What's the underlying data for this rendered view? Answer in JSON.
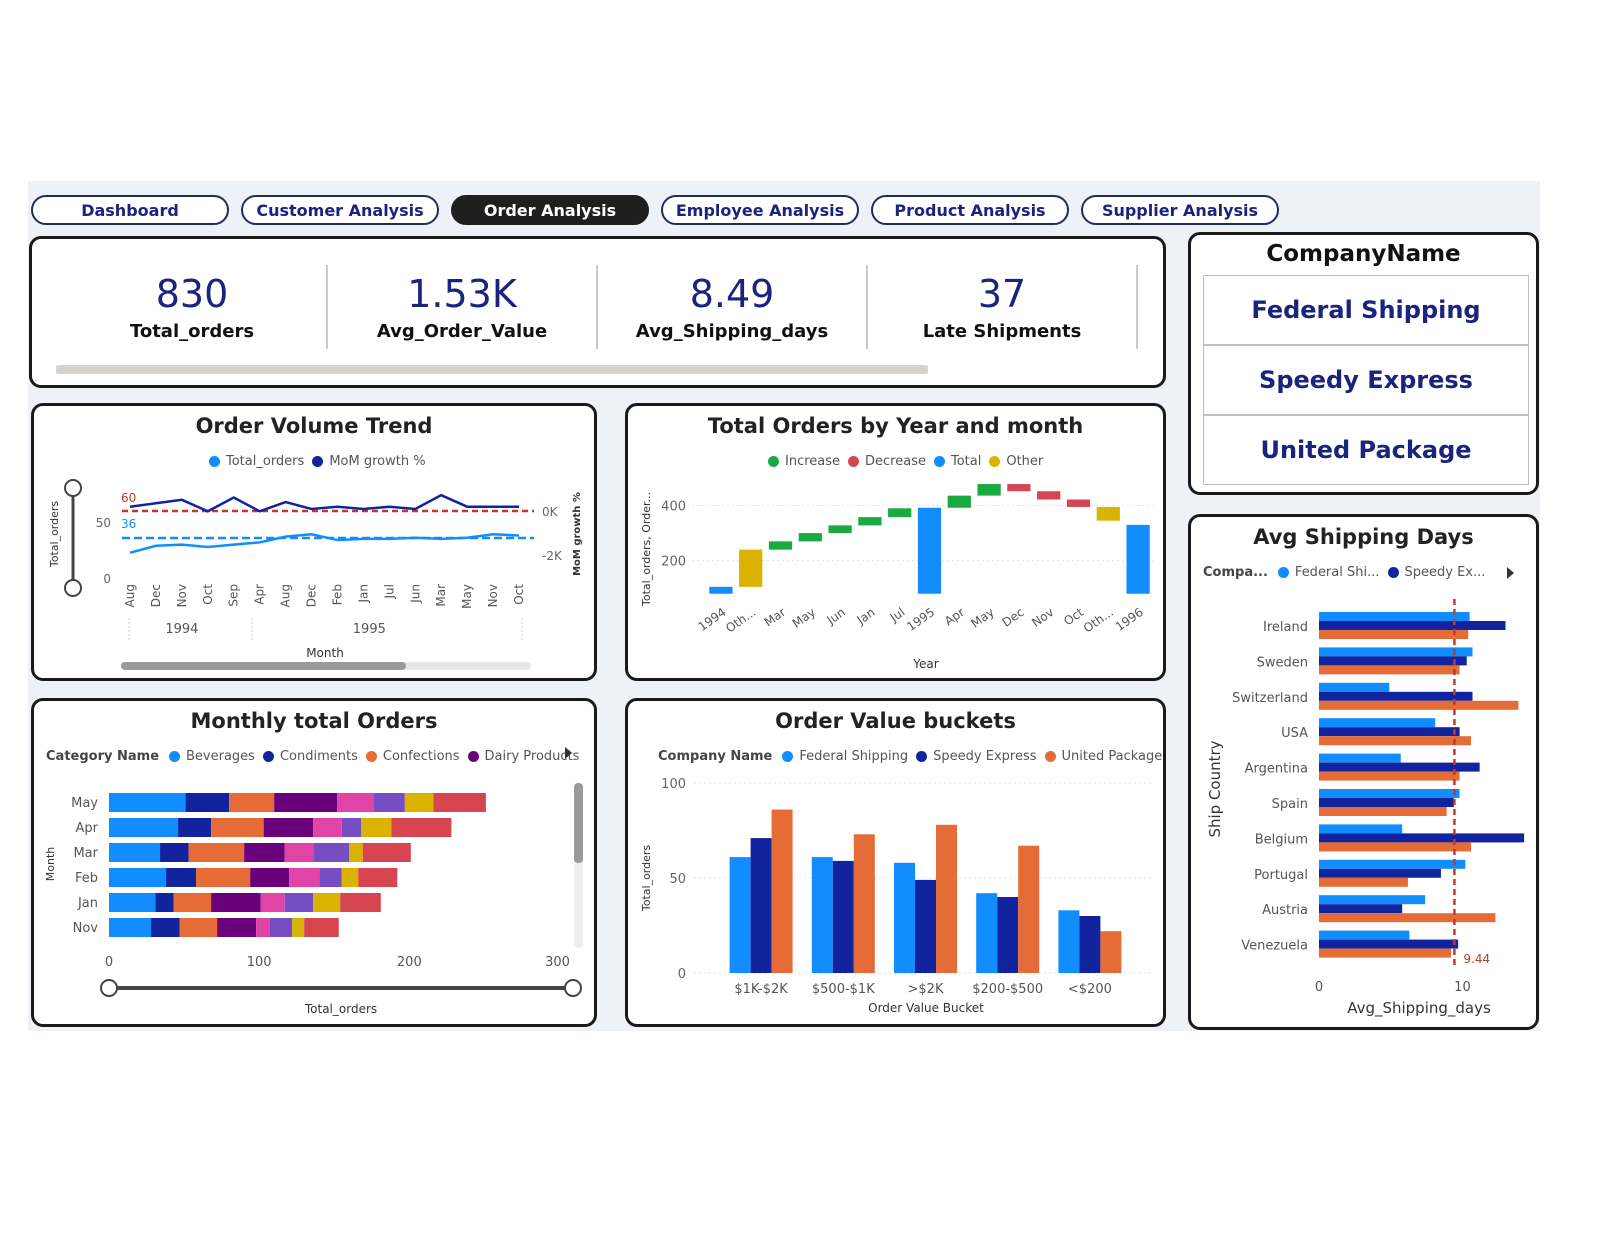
{
  "tabs": [
    {
      "label": "Dashboard",
      "active": false
    },
    {
      "label": "Customer Analysis",
      "active": false
    },
    {
      "label": "Order Analysis",
      "active": true
    },
    {
      "label": "Employee Analysis",
      "active": false
    },
    {
      "label": "Product Analysis",
      "active": false
    },
    {
      "label": "Supplier Analysis",
      "active": false
    }
  ],
  "kpis": [
    {
      "value": "830",
      "label": "Total_orders"
    },
    {
      "value": "1.53K",
      "label": "Avg_Order_Value"
    },
    {
      "value": "8.49",
      "label": "Avg_Shipping_days"
    },
    {
      "value": "37",
      "label": "Late Shipments"
    }
  ],
  "slicer": {
    "title": "CompanyName",
    "items": [
      "Federal Shipping",
      "Speedy Express",
      "United Package"
    ]
  },
  "colors": {
    "light_blue": "#118dff",
    "dark_blue": "#12239e",
    "orange": "#e66c37",
    "purple": "#6b007b",
    "pink": "#e044a7",
    "lavender": "#744ec2",
    "gold": "#d9b300",
    "red": "#d64550",
    "green": "#1aab40",
    "decrease": "#d64554",
    "ref_red": "#c0392b"
  },
  "chart_data": [
    {
      "id": "order-volume-trend",
      "type": "line",
      "title": "Order Volume Trend",
      "legend": [
        "Total_orders",
        "MoM growth %"
      ],
      "xlabel": "Month",
      "ylabel": "Total_orders",
      "y2label": "MoM growth %",
      "x": [
        "Aug",
        "Dec",
        "Nov",
        "Oct",
        "Sep",
        "Apr",
        "Aug",
        "Dec",
        "Feb",
        "Jan",
        "Jul",
        "Jun",
        "Mar",
        "May",
        "Nov",
        "Oct"
      ],
      "year_groups": [
        {
          "label": "1994",
          "from": 0,
          "to": 4
        },
        {
          "label": "1995",
          "from": 5,
          "to": 15
        }
      ],
      "yticks": [
        "50",
        "0"
      ],
      "y2ticks": [
        "0K",
        "-2K"
      ],
      "reference_lines": [
        {
          "label": "60",
          "color": "#c0392b"
        },
        {
          "label": "36",
          "color": "#118dff"
        }
      ],
      "series": [
        {
          "name": "Total_orders",
          "values": [
            22,
            28,
            29,
            27,
            29,
            31,
            36,
            38,
            33,
            34,
            34,
            35,
            34,
            35,
            38,
            37
          ]
        },
        {
          "name": "MoM growth %",
          "values": [
            62,
            65,
            68,
            58,
            70,
            58,
            66,
            60,
            62,
            60,
            62,
            60,
            72,
            62,
            62,
            62
          ]
        }
      ]
    },
    {
      "id": "total-orders-waterfall",
      "type": "bar",
      "title": "Total Orders by Year and month",
      "legend": [
        "Increase",
        "Decrease",
        "Total",
        "Other"
      ],
      "xlabel": "Year",
      "ylabel": "Total_orders, Order...",
      "yticks": [
        200,
        400
      ],
      "ylim": [
        50,
        500
      ],
      "bars": [
        {
          "label": "1994",
          "kind": "Total",
          "start": 80,
          "end": 105
        },
        {
          "label": "Oth...",
          "kind": "Other",
          "start": 105,
          "end": 240
        },
        {
          "label": "Mar",
          "kind": "Increase",
          "start": 240,
          "end": 270
        },
        {
          "label": "May",
          "kind": "Increase",
          "start": 270,
          "end": 300
        },
        {
          "label": "Jun",
          "kind": "Increase",
          "start": 300,
          "end": 328
        },
        {
          "label": "Jan",
          "kind": "Increase",
          "start": 328,
          "end": 358
        },
        {
          "label": "Jul",
          "kind": "Increase",
          "start": 358,
          "end": 390
        },
        {
          "label": "1995",
          "kind": "Total",
          "start": 80,
          "end": 392
        },
        {
          "label": "Apr",
          "kind": "Increase",
          "start": 392,
          "end": 436
        },
        {
          "label": "May",
          "kind": "Increase",
          "start": 436,
          "end": 478
        },
        {
          "label": "Dec",
          "kind": "Decrease",
          "start": 478,
          "end": 452
        },
        {
          "label": "Nov",
          "kind": "Decrease",
          "start": 452,
          "end": 422
        },
        {
          "label": "Oct",
          "kind": "Decrease",
          "start": 422,
          "end": 395
        },
        {
          "label": "Oth...",
          "kind": "Other",
          "start": 395,
          "end": 345
        },
        {
          "label": "1996",
          "kind": "Total",
          "start": 80,
          "end": 330
        }
      ]
    },
    {
      "id": "monthly-total-orders",
      "type": "bar",
      "orientation": "horizontal",
      "stacked": true,
      "title": "Monthly total Orders",
      "legend_title": "Category Name",
      "legend": [
        "Beverages",
        "Condiments",
        "Confections",
        "Dairy Products"
      ],
      "xlabel": "Total_orders",
      "ylabel": "Month",
      "xticks": [
        0,
        100,
        200,
        300
      ],
      "xlim": [
        0,
        305
      ],
      "categories": [
        "May",
        "Apr",
        "Mar",
        "Feb",
        "Jan",
        "Nov"
      ],
      "series": [
        {
          "name": "Beverages",
          "color": "#118dff",
          "values": [
            51,
            46,
            34,
            38,
            31,
            28
          ]
        },
        {
          "name": "Condiments",
          "color": "#12239e",
          "values": [
            29,
            22,
            19,
            20,
            12,
            19
          ]
        },
        {
          "name": "Confections",
          "color": "#e66c37",
          "values": [
            30,
            35,
            37,
            36,
            25,
            25
          ]
        },
        {
          "name": "Dairy Products",
          "color": "#6b007b",
          "values": [
            42,
            33,
            27,
            26,
            33,
            26
          ]
        },
        {
          "values": [
            24,
            19,
            19,
            20,
            16,
            9
          ]
        },
        {
          "values": [
            21,
            13,
            24,
            15,
            19,
            15
          ]
        },
        {
          "values": [
            19,
            20,
            9,
            11,
            18,
            8
          ]
        },
        {
          "values": [
            35,
            40,
            32,
            26,
            27,
            23
          ]
        }
      ]
    },
    {
      "id": "order-value-buckets",
      "type": "bar",
      "title": "Order Value buckets",
      "legend_title": "Company Name",
      "legend": [
        "Federal Shipping",
        "Speedy Express",
        "United Package"
      ],
      "xlabel": "Order Value Bucket",
      "ylabel": "Total_orders",
      "yticks": [
        0,
        50,
        100
      ],
      "ylim": [
        0,
        100
      ],
      "categories": [
        "$1K-$2K",
        "$500-$1K",
        ">$2K",
        "$200-$500",
        "<$200"
      ],
      "series": [
        {
          "name": "Federal Shipping",
          "values": [
            61,
            61,
            58,
            42,
            33
          ]
        },
        {
          "name": "Speedy Express",
          "values": [
            71,
            59,
            49,
            40,
            30
          ]
        },
        {
          "name": "United Package",
          "values": [
            86,
            73,
            78,
            67,
            22
          ]
        }
      ]
    },
    {
      "id": "avg-shipping-days",
      "type": "bar",
      "orientation": "horizontal",
      "title": "Avg Shipping Days",
      "legend_title": "Compa...",
      "legend": [
        "Federal Shi...",
        "Speedy Ex..."
      ],
      "xlabel": "Avg_Shipping_days",
      "ylabel": "Ship Country",
      "xticks": [
        0,
        10
      ],
      "xlim": [
        0,
        14.5
      ],
      "reference_line": {
        "value": 9.44,
        "label": "9.44"
      },
      "categories": [
        "Ireland",
        "Sweden",
        "Switzerland",
        "USA",
        "Argentina",
        "Spain",
        "Belgium",
        "Portugal",
        "Austria",
        "Venezuela"
      ],
      "series": [
        {
          "name": "Federal Shi...",
          "values": [
            10.5,
            10.7,
            4.9,
            8.1,
            5.7,
            9.8,
            5.8,
            10.2,
            7.4,
            6.3
          ]
        },
        {
          "name": "Speedy Ex...",
          "values": [
            13.0,
            10.3,
            10.7,
            9.8,
            11.2,
            9.4,
            14.3,
            8.5,
            5.8,
            9.7
          ]
        },
        {
          "name": "United Package",
          "values": [
            10.4,
            9.8,
            13.9,
            10.6,
            9.8,
            8.9,
            10.6,
            6.2,
            12.3,
            9.2
          ]
        }
      ]
    }
  ]
}
